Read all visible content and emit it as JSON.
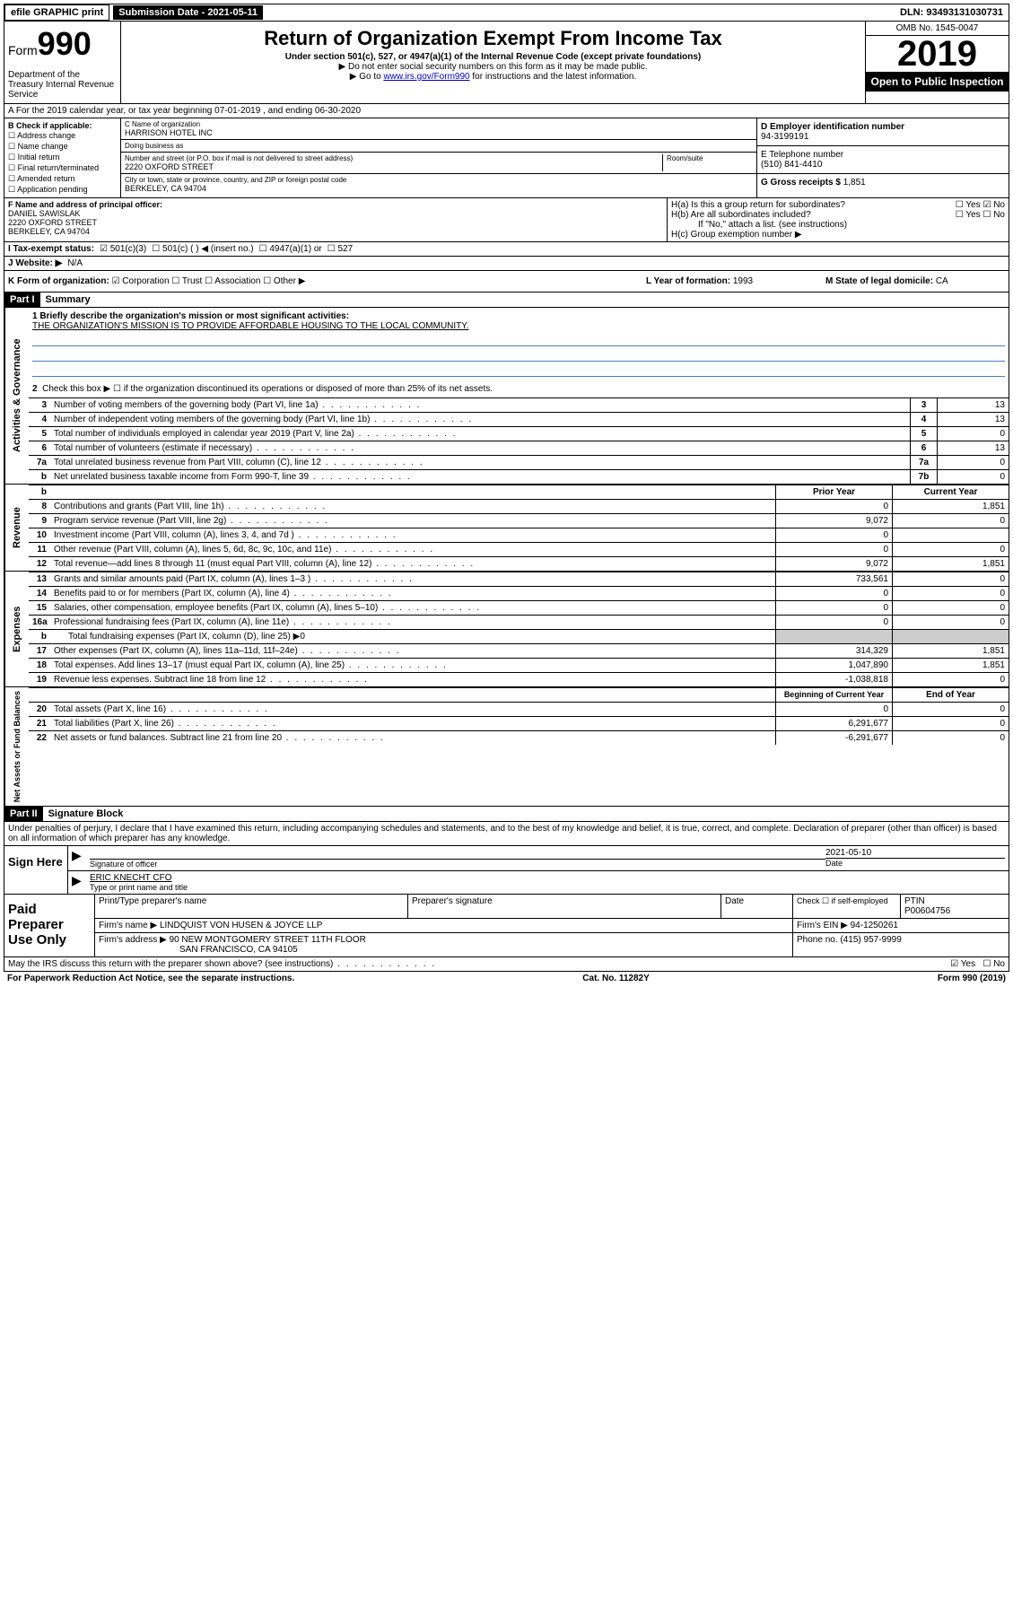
{
  "topbar": {
    "efile": "efile GRAPHIC print",
    "submission": "Submission Date - 2021-05-11",
    "dln": "DLN: 93493131030731"
  },
  "header": {
    "form_label": "Form",
    "form_num": "990",
    "dept": "Department of the Treasury Internal Revenue Service",
    "title": "Return of Organization Exempt From Income Tax",
    "subtitle": "Under section 501(c), 527, or 4947(a)(1) of the Internal Revenue Code (except private foundations)",
    "arrow1": "▶ Do not enter social security numbers on this form as it may be made public.",
    "arrow2_pre": "▶ Go to ",
    "arrow2_link": "www.irs.gov/Form990",
    "arrow2_post": " for instructions and the latest information.",
    "omb": "OMB No. 1545-0047",
    "year": "2019",
    "open": "Open to Public Inspection"
  },
  "taxyear": "A For the 2019 calendar year, or tax year beginning 07-01-2019    , and ending 06-30-2020",
  "boxB": {
    "label": "B Check if applicable:",
    "opts": [
      "☐ Address change",
      "☐ Name change",
      "☐ Initial return",
      "☐ Final return/terminated",
      "☐ Amended return",
      "☐ Application pending"
    ]
  },
  "boxC": {
    "name_label": "C Name of organization",
    "name": "HARRISON HOTEL INC",
    "dba_label": "Doing business as",
    "addr_label": "Number and street (or P.O. box if mail is not delivered to street address)",
    "room_label": "Room/suite",
    "addr": "2220 OXFORD STREET",
    "city_label": "City or town, state or province, country, and ZIP or foreign postal code",
    "city": "BERKELEY, CA  94704"
  },
  "boxD": {
    "label": "D Employer identification number",
    "val": "94-3199191"
  },
  "boxE": {
    "label": "E Telephone number",
    "val": "(510) 841-4410"
  },
  "boxG": {
    "label": "G Gross receipts $",
    "val": "1,851"
  },
  "boxF": {
    "label": "F Name and address of principal officer:",
    "name": "DANIEL SAWISLAK",
    "addr1": "2220 OXFORD STREET",
    "addr2": "BERKELEY, CA  94704"
  },
  "boxH": {
    "a": "H(a)  Is this a group return for subordinates?",
    "a_yes": "☐ Yes",
    "a_no": "☑ No",
    "b": "H(b)  Are all subordinates included?",
    "b_yes": "☐ Yes",
    "b_no": "☐ No",
    "b_note": "If \"No,\" attach a list. (see instructions)",
    "c": "H(c)  Group exemption number ▶"
  },
  "boxI": {
    "label": "I   Tax-exempt status:",
    "opt1": "☑ 501(c)(3)",
    "opt2": "☐ 501(c) (  ) ◀ (insert no.)",
    "opt3": "☐ 4947(a)(1) or",
    "opt4": "☐ 527"
  },
  "boxJ": {
    "label": "J   Website: ▶",
    "val": "N/A"
  },
  "boxK": {
    "label": "K Form of organization:",
    "opts": "☑ Corporation  ☐ Trust  ☐ Association  ☐ Other ▶"
  },
  "boxL": {
    "label": "L Year of formation:",
    "val": "1993"
  },
  "boxM": {
    "label": "M State of legal domicile:",
    "val": "CA"
  },
  "part1": {
    "header": "Part I",
    "title": "Summary"
  },
  "summary": {
    "line1_label": "1  Briefly describe the organization's mission or most significant activities:",
    "mission": "THE ORGANIZATION'S MISSION IS TO PROVIDE AFFORDABLE HOUSING TO THE LOCAL COMMUNITY.",
    "line2": "Check this box ▶ ☐  if the organization discontinued its operations or disposed of more than 25% of its net assets.",
    "lines": [
      {
        "n": "3",
        "desc": "Number of voting members of the governing body (Part VI, line 1a)",
        "box": "3",
        "val": "13"
      },
      {
        "n": "4",
        "desc": "Number of independent voting members of the governing body (Part VI, line 1b)",
        "box": "4",
        "val": "13"
      },
      {
        "n": "5",
        "desc": "Total number of individuals employed in calendar year 2019 (Part V, line 2a)",
        "box": "5",
        "val": "0"
      },
      {
        "n": "6",
        "desc": "Total number of volunteers (estimate if necessary)",
        "box": "6",
        "val": "13"
      },
      {
        "n": "7a",
        "desc": "Total unrelated business revenue from Part VIII, column (C), line 12",
        "box": "7a",
        "val": "0"
      },
      {
        "n": "b",
        "desc": "Net unrelated business taxable income from Form 990-T, line 39",
        "box": "7b",
        "val": "0"
      }
    ],
    "col_headers": {
      "prior": "Prior Year",
      "current": "Current Year"
    },
    "revenue": [
      {
        "n": "8",
        "desc": "Contributions and grants (Part VIII, line 1h)",
        "p": "0",
        "c": "1,851"
      },
      {
        "n": "9",
        "desc": "Program service revenue (Part VIII, line 2g)",
        "p": "9,072",
        "c": "0"
      },
      {
        "n": "10",
        "desc": "Investment income (Part VIII, column (A), lines 3, 4, and 7d )",
        "p": "0",
        "c": ""
      },
      {
        "n": "11",
        "desc": "Other revenue (Part VIII, column (A), lines 5, 6d, 8c, 9c, 10c, and 11e)",
        "p": "0",
        "c": "0"
      },
      {
        "n": "12",
        "desc": "Total revenue—add lines 8 through 11 (must equal Part VIII, column (A), line 12)",
        "p": "9,072",
        "c": "1,851"
      }
    ],
    "expenses": [
      {
        "n": "13",
        "desc": "Grants and similar amounts paid (Part IX, column (A), lines 1–3 )",
        "p": "733,561",
        "c": "0"
      },
      {
        "n": "14",
        "desc": "Benefits paid to or for members (Part IX, column (A), line 4)",
        "p": "0",
        "c": "0"
      },
      {
        "n": "15",
        "desc": "Salaries, other compensation, employee benefits (Part IX, column (A), lines 5–10)",
        "p": "0",
        "c": "0"
      },
      {
        "n": "16a",
        "desc": "Professional fundraising fees (Part IX, column (A), line 11e)",
        "p": "0",
        "c": "0"
      },
      {
        "n": "b",
        "desc": "Total fundraising expenses (Part IX, column (D), line 25) ▶0",
        "p": "",
        "c": "",
        "shaded": true
      },
      {
        "n": "17",
        "desc": "Other expenses (Part IX, column (A), lines 11a–11d, 11f–24e)",
        "p": "314,329",
        "c": "1,851"
      },
      {
        "n": "18",
        "desc": "Total expenses. Add lines 13–17 (must equal Part IX, column (A), line 25)",
        "p": "1,047,890",
        "c": "1,851"
      },
      {
        "n": "19",
        "desc": "Revenue less expenses. Subtract line 18 from line 12",
        "p": "-1,038,818",
        "c": "0"
      }
    ],
    "net_headers": {
      "begin": "Beginning of Current Year",
      "end": "End of Year"
    },
    "net": [
      {
        "n": "20",
        "desc": "Total assets (Part X, line 16)",
        "p": "0",
        "c": "0"
      },
      {
        "n": "21",
        "desc": "Total liabilities (Part X, line 26)",
        "p": "6,291,677",
        "c": "0"
      },
      {
        "n": "22",
        "desc": "Net assets or fund balances. Subtract line 21 from line 20",
        "p": "-6,291,677",
        "c": "0"
      }
    ]
  },
  "sections": {
    "ag": "Activities & Governance",
    "rev": "Revenue",
    "exp": "Expenses",
    "net": "Net Assets or Fund Balances"
  },
  "part2": {
    "header": "Part II",
    "title": "Signature Block"
  },
  "perjury": "Under penalties of perjury, I declare that I have examined this return, including accompanying schedules and statements, and to the best of my knowledge and belief, it is true, correct, and complete. Declaration of preparer (other than officer) is based on all information of which preparer has any knowledge.",
  "sign": {
    "label": "Sign Here",
    "sig_label": "Signature of officer",
    "date_label": "Date",
    "date": "2021-05-10",
    "name": "ERIC KNECHT CFO",
    "name_label": "Type or print name and title"
  },
  "preparer": {
    "label": "Paid Preparer Use Only",
    "h1": "Print/Type preparer's name",
    "h2": "Preparer's signature",
    "h3": "Date",
    "h4_pre": "Check ☐ if self-employed",
    "h5": "PTIN",
    "ptin": "P00604756",
    "firm_label": "Firm's name    ▶",
    "firm": "LINDQUIST VON HUSEN & JOYCE LLP",
    "ein_label": "Firm's EIN ▶",
    "ein": "94-1250261",
    "addr_label": "Firm's address ▶",
    "addr1": "90 NEW MONTGOMERY STREET 11TH FLOOR",
    "addr2": "SAN FRANCISCO, CA  94105",
    "phone_label": "Phone no.",
    "phone": "(415) 957-9999"
  },
  "discuss": {
    "q": "May the IRS discuss this return with the preparer shown above? (see instructions)",
    "yes": "☑ Yes",
    "no": "☐ No"
  },
  "footer": {
    "left": "For Paperwork Reduction Act Notice, see the separate instructions.",
    "mid": "Cat. No. 11282Y",
    "right": "Form 990 (2019)"
  }
}
